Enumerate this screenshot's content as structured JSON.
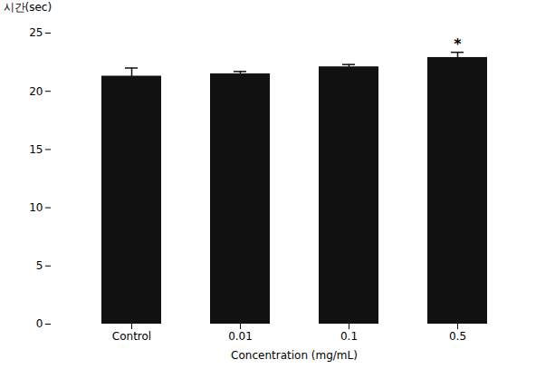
{
  "chart_data": {
    "type": "bar",
    "categories": [
      "Control",
      "0.01",
      "0.1",
      "0.5"
    ],
    "values": [
      21.3,
      21.5,
      22.1,
      22.9
    ],
    "errors": [
      0.7,
      0.2,
      0.2,
      0.45
    ],
    "color": "#111111",
    "xlabel": "Concentration (mg/mL)",
    "ylabel": "시간(sec)",
    "ylim": [
      0,
      25
    ],
    "yticks": [
      0,
      5,
      10,
      15,
      20,
      25
    ],
    "annotations": [
      {
        "text": "*",
        "category": "0.5"
      }
    ],
    "grid": false
  }
}
